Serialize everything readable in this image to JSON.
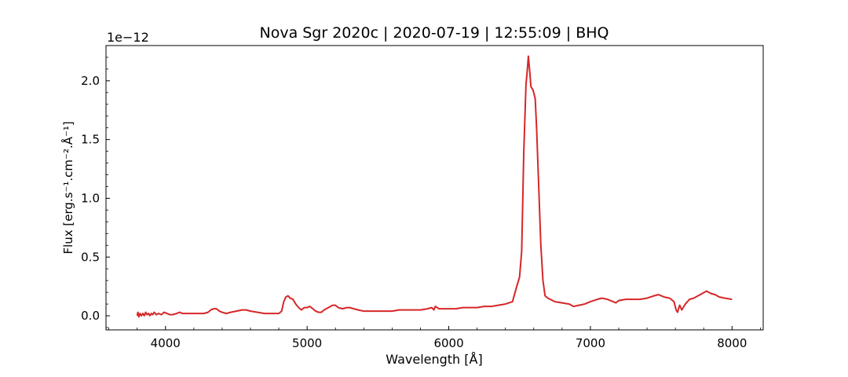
{
  "chart_data": {
    "type": "line",
    "title": "Nova Sgr 2020c | 2020-07-19 | 12:55:09 | BHQ",
    "xlabel": "Wavelength [Å]",
    "ylabel": "Flux [erg.s⁻¹.cm⁻².Å⁻¹]",
    "offset_text": "1e−12",
    "xlim": [
      3580,
      8220
    ],
    "ylim": [
      -0.12,
      2.3
    ],
    "x_ticks": [
      4000,
      5000,
      6000,
      7000,
      8000
    ],
    "y_ticks": [
      0.0,
      0.5,
      1.0,
      1.5,
      2.0
    ],
    "y_tick_labels": [
      "0.0",
      "0.5",
      "1.0",
      "1.5",
      "2.0"
    ],
    "grid": false,
    "series": [
      {
        "color": "#d62728",
        "points": [
          [
            3800,
            0.0
          ],
          [
            3805,
            0.03
          ],
          [
            3812,
            -0.01
          ],
          [
            3820,
            0.02
          ],
          [
            3830,
            0.0
          ],
          [
            3840,
            0.02
          ],
          [
            3850,
            0.0
          ],
          [
            3860,
            0.03
          ],
          [
            3870,
            0.01
          ],
          [
            3880,
            0.02
          ],
          [
            3890,
            0.0
          ],
          [
            3900,
            0.02
          ],
          [
            3910,
            0.01
          ],
          [
            3920,
            0.03
          ],
          [
            3935,
            0.01
          ],
          [
            3950,
            0.02
          ],
          [
            3970,
            0.01
          ],
          [
            3990,
            0.03
          ],
          [
            4010,
            0.02
          ],
          [
            4030,
            0.01
          ],
          [
            4050,
            0.01
          ],
          [
            4080,
            0.02
          ],
          [
            4100,
            0.03
          ],
          [
            4120,
            0.02
          ],
          [
            4150,
            0.02
          ],
          [
            4180,
            0.02
          ],
          [
            4210,
            0.02
          ],
          [
            4240,
            0.02
          ],
          [
            4270,
            0.02
          ],
          [
            4300,
            0.03
          ],
          [
            4320,
            0.05
          ],
          [
            4340,
            0.06
          ],
          [
            4360,
            0.06
          ],
          [
            4380,
            0.04
          ],
          [
            4400,
            0.03
          ],
          [
            4430,
            0.02
          ],
          [
            4460,
            0.03
          ],
          [
            4500,
            0.04
          ],
          [
            4540,
            0.05
          ],
          [
            4570,
            0.05
          ],
          [
            4600,
            0.04
          ],
          [
            4650,
            0.03
          ],
          [
            4700,
            0.02
          ],
          [
            4750,
            0.02
          ],
          [
            4800,
            0.02
          ],
          [
            4820,
            0.04
          ],
          [
            4835,
            0.12
          ],
          [
            4850,
            0.16
          ],
          [
            4865,
            0.17
          ],
          [
            4880,
            0.15
          ],
          [
            4900,
            0.14
          ],
          [
            4920,
            0.1
          ],
          [
            4940,
            0.07
          ],
          [
            4960,
            0.05
          ],
          [
            4980,
            0.07
          ],
          [
            5000,
            0.07
          ],
          [
            5020,
            0.08
          ],
          [
            5040,
            0.06
          ],
          [
            5060,
            0.04
          ],
          [
            5080,
            0.03
          ],
          [
            5100,
            0.03
          ],
          [
            5120,
            0.05
          ],
          [
            5150,
            0.07
          ],
          [
            5180,
            0.09
          ],
          [
            5200,
            0.09
          ],
          [
            5220,
            0.07
          ],
          [
            5250,
            0.06
          ],
          [
            5280,
            0.07
          ],
          [
            5300,
            0.07
          ],
          [
            5330,
            0.06
          ],
          [
            5360,
            0.05
          ],
          [
            5400,
            0.04
          ],
          [
            5450,
            0.04
          ],
          [
            5500,
            0.04
          ],
          [
            5550,
            0.04
          ],
          [
            5600,
            0.04
          ],
          [
            5650,
            0.05
          ],
          [
            5700,
            0.05
          ],
          [
            5750,
            0.05
          ],
          [
            5800,
            0.05
          ],
          [
            5850,
            0.06
          ],
          [
            5880,
            0.07
          ],
          [
            5895,
            0.05
          ],
          [
            5905,
            0.08
          ],
          [
            5930,
            0.06
          ],
          [
            5970,
            0.06
          ],
          [
            6000,
            0.06
          ],
          [
            6050,
            0.06
          ],
          [
            6100,
            0.07
          ],
          [
            6150,
            0.07
          ],
          [
            6200,
            0.07
          ],
          [
            6250,
            0.08
          ],
          [
            6300,
            0.08
          ],
          [
            6350,
            0.09
          ],
          [
            6400,
            0.1
          ],
          [
            6450,
            0.12
          ],
          [
            6480,
            0.25
          ],
          [
            6500,
            0.33
          ],
          [
            6515,
            0.55
          ],
          [
            6530,
            1.4
          ],
          [
            6545,
            1.97
          ],
          [
            6555,
            2.1
          ],
          [
            6562,
            2.21
          ],
          [
            6570,
            2.1
          ],
          [
            6580,
            1.95
          ],
          [
            6595,
            1.92
          ],
          [
            6610,
            1.85
          ],
          [
            6620,
            1.6
          ],
          [
            6635,
            1.1
          ],
          [
            6650,
            0.6
          ],
          [
            6665,
            0.3
          ],
          [
            6680,
            0.17
          ],
          [
            6700,
            0.15
          ],
          [
            6750,
            0.12
          ],
          [
            6800,
            0.11
          ],
          [
            6850,
            0.1
          ],
          [
            6880,
            0.08
          ],
          [
            6920,
            0.09
          ],
          [
            6960,
            0.1
          ],
          [
            7000,
            0.12
          ],
          [
            7050,
            0.14
          ],
          [
            7080,
            0.15
          ],
          [
            7120,
            0.14
          ],
          [
            7160,
            0.12
          ],
          [
            7180,
            0.11
          ],
          [
            7200,
            0.13
          ],
          [
            7250,
            0.14
          ],
          [
            7300,
            0.14
          ],
          [
            7350,
            0.14
          ],
          [
            7400,
            0.15
          ],
          [
            7450,
            0.17
          ],
          [
            7480,
            0.18
          ],
          [
            7520,
            0.16
          ],
          [
            7560,
            0.15
          ],
          [
            7590,
            0.12
          ],
          [
            7605,
            0.05
          ],
          [
            7615,
            0.03
          ],
          [
            7630,
            0.09
          ],
          [
            7645,
            0.05
          ],
          [
            7670,
            0.1
          ],
          [
            7700,
            0.14
          ],
          [
            7730,
            0.15
          ],
          [
            7760,
            0.17
          ],
          [
            7790,
            0.19
          ],
          [
            7820,
            0.21
          ],
          [
            7850,
            0.19
          ],
          [
            7880,
            0.18
          ],
          [
            7910,
            0.16
          ],
          [
            7950,
            0.15
          ],
          [
            8000,
            0.14
          ]
        ]
      }
    ]
  }
}
